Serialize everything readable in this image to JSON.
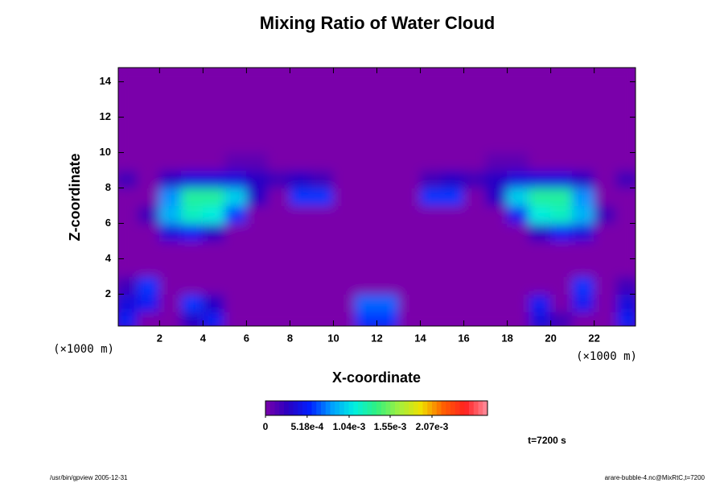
{
  "chart_data": {
    "type": "contour",
    "title": "Mixing Ratio of Water Cloud",
    "x_label": "X-coordinate",
    "y_label": "Z-coordinate",
    "x_unit_label": "(×1000 m)",
    "y_unit_label": "(×1000 m)",
    "time_label": "t=7200 s",
    "footer_left": "/usr/bin/gpview 2005-12-31",
    "footer_right": "arare-bubble-4.nc@MixRtC,t=7200",
    "xlim": [
      0.1,
      23.9
    ],
    "ylim": [
      0.2,
      14.8
    ],
    "xticks": [
      2,
      4,
      6,
      8,
      10,
      12,
      14,
      16,
      18,
      20,
      22
    ],
    "yticks": [
      2,
      4,
      6,
      8,
      10,
      12,
      14
    ],
    "zlim": [
      0,
      0.00276
    ],
    "zticks": [
      0,
      {
        "value": 0.000518,
        "label": "5.18e-4"
      },
      {
        "value": 0.00104,
        "label": "1.04e-3"
      },
      {
        "value": 0.00155,
        "label": "1.55e-3"
      },
      {
        "value": 0.00207,
        "label": "2.07e-3"
      }
    ],
    "colorscale": [
      "#7a00aa",
      "#2a00c0",
      "#0020ff",
      "#00a0ff",
      "#00f0e0",
      "#30f080",
      "#a0f040",
      "#f0e000",
      "#ff6000",
      "#ff2020",
      "#ff90a0"
    ],
    "x": [
      0.5,
      1.5,
      2.5,
      3.5,
      4.5,
      5.5,
      6.5,
      7.5,
      8.5,
      9.5,
      10.5,
      11.5,
      12.5,
      13.5,
      14.5,
      15.5,
      16.5,
      17.5,
      18.5,
      19.5,
      20.5,
      21.5,
      22.5,
      23.5
    ],
    "y": [
      0.5,
      1.5,
      2.5,
      3.5,
      4.5,
      5.5,
      6.5,
      7.5,
      8.5,
      9.5,
      10.5,
      11.5,
      12.5,
      13.5,
      14.5
    ],
    "z": [
      [
        0.0005,
        0,
        0,
        0.0003,
        0.0005,
        0,
        0,
        0,
        0,
        0,
        0,
        0.0006,
        0.0006,
        0,
        0,
        0,
        0,
        0,
        0,
        0.0004,
        0.0002,
        0,
        0,
        0.0005
      ],
      [
        0.0004,
        0.0005,
        0,
        0.0006,
        0.0003,
        0,
        0,
        0,
        0,
        0,
        0,
        0.0007,
        0.0007,
        0,
        0,
        0,
        0,
        0,
        0,
        0.0005,
        0,
        0.0005,
        0,
        0.0004
      ],
      [
        0.0002,
        0.0006,
        0,
        0,
        0,
        0,
        0,
        0,
        0,
        0,
        0,
        0,
        0,
        0,
        0,
        0,
        0,
        0,
        0,
        0,
        0,
        0.0006,
        0,
        0.0002
      ],
      [
        0,
        0,
        0,
        0,
        0,
        0,
        0,
        0,
        0,
        0,
        0,
        0,
        0,
        0,
        0,
        0,
        0,
        0,
        0,
        0,
        0,
        0,
        0,
        0
      ],
      [
        0,
        0,
        0,
        0,
        0,
        0,
        0,
        0,
        0,
        0,
        0,
        0,
        0,
        0,
        0,
        0,
        0,
        0,
        0,
        0,
        0,
        0,
        0,
        0
      ],
      [
        0,
        0,
        0.0004,
        0.0005,
        0.0003,
        0,
        0,
        0,
        0,
        0,
        0,
        0,
        0,
        0,
        0,
        0,
        0,
        0,
        0,
        0.0003,
        0.0005,
        0.0004,
        0,
        0
      ],
      [
        0,
        0.0002,
        0.0009,
        0.0012,
        0.0011,
        0.0006,
        0,
        0,
        0,
        0,
        0,
        0,
        0,
        0,
        0,
        0,
        0,
        0,
        0.0005,
        0.0011,
        0.0012,
        0.0009,
        0.0002,
        0
      ],
      [
        0,
        0,
        0.0008,
        0.0013,
        0.0013,
        0.001,
        0.0003,
        0,
        0.0006,
        0.0006,
        0,
        0,
        0,
        0,
        0.0006,
        0.0006,
        0,
        0.0003,
        0.001,
        0.0013,
        0.0013,
        0.0008,
        0,
        0
      ],
      [
        0.0002,
        0,
        0.0003,
        0.0004,
        0.0004,
        0.0004,
        0.0003,
        0.0002,
        0.0003,
        0.0002,
        0,
        0,
        0,
        0,
        0.0002,
        0.0003,
        0.0002,
        0.0003,
        0.0004,
        0.0004,
        0.0004,
        0.0003,
        0,
        0.0002
      ],
      [
        0,
        0,
        0,
        0,
        0,
        0.0001,
        0.0001,
        0,
        0,
        0,
        0,
        0,
        0,
        0,
        0,
        0,
        0,
        0.0001,
        0.0001,
        0,
        0,
        0,
        0,
        0
      ],
      [
        0,
        0,
        0,
        0,
        0,
        0,
        0,
        0,
        0,
        0,
        0,
        0,
        0,
        0,
        0,
        0,
        0,
        0,
        0,
        0,
        0,
        0,
        0,
        0
      ],
      [
        0,
        0,
        0,
        0,
        0,
        0,
        0,
        0,
        0,
        0,
        0,
        0,
        0,
        0,
        0,
        0,
        0,
        0,
        0,
        0,
        0,
        0,
        0,
        0
      ],
      [
        0,
        0,
        0,
        0,
        0,
        0,
        0,
        0,
        0,
        0,
        0,
        0,
        0,
        0,
        0,
        0,
        0,
        0,
        0,
        0,
        0,
        0,
        0,
        0
      ],
      [
        0,
        0,
        0,
        0,
        0,
        0,
        0,
        0,
        0,
        0,
        0,
        0,
        0,
        0,
        0,
        0,
        0,
        0,
        0,
        0,
        0,
        0,
        0,
        0
      ],
      [
        0,
        0,
        0,
        0,
        0,
        0,
        0,
        0,
        0,
        0,
        0,
        0,
        0,
        0,
        0,
        0,
        0,
        0,
        0,
        0,
        0,
        0,
        0,
        0
      ]
    ]
  }
}
